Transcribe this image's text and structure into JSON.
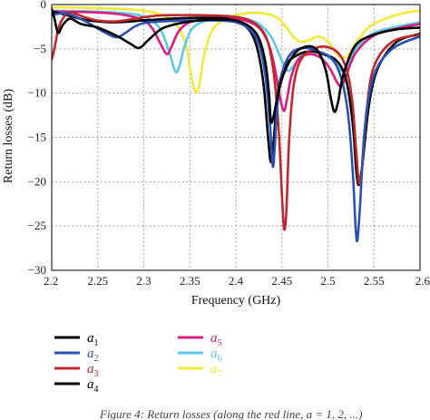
{
  "chart_data": {
    "type": "line",
    "xlabel": "Frequency (GHz)",
    "ylabel": "Return losses (dB)",
    "xlim": [
      2.2,
      2.6
    ],
    "ylim": [
      -30,
      0
    ],
    "xticks": [
      2.2,
      2.25,
      2.3,
      2.35,
      2.4,
      2.45,
      2.5,
      2.55,
      2.6
    ],
    "xtick_labels": [
      "2.2",
      "2.25",
      "2.3",
      "2.35",
      "2.4",
      "2.45",
      "2.5",
      "2.55",
      "2.6"
    ],
    "yticks": [
      0,
      -5,
      -10,
      -15,
      -20,
      -25,
      -30
    ],
    "ytick_labels": [
      "0",
      "−5",
      "−10",
      "−15",
      "−20",
      "−25",
      "−30"
    ],
    "grid": true,
    "grid_style": "dotted",
    "legend_placement": "below",
    "series": [
      {
        "name": "a1",
        "label_base": "a",
        "label_sub": "1",
        "color": "#000000",
        "x": [
          2.2,
          2.203,
          2.207,
          2.212,
          2.22,
          2.232,
          2.25,
          2.27,
          2.285,
          2.295,
          2.305,
          2.32,
          2.34,
          2.36,
          2.38,
          2.4,
          2.415,
          2.425,
          2.432,
          2.436,
          2.438,
          2.441,
          2.445,
          2.452,
          2.465,
          2.48,
          2.49,
          2.498,
          2.503,
          2.507,
          2.511,
          2.517,
          2.53,
          2.55,
          2.575,
          2.6
        ],
        "y": [
          -0.5,
          -1.6,
          -3.2,
          -2.3,
          -1.6,
          -2.2,
          -2.6,
          -3.5,
          -4.4,
          -4.9,
          -4.0,
          -2.7,
          -2.1,
          -1.8,
          -1.7,
          -1.8,
          -2.5,
          -3.8,
          -6.5,
          -10.0,
          -13.2,
          -12.6,
          -10.5,
          -7.8,
          -5.4,
          -4.7,
          -5.4,
          -7.6,
          -10.5,
          -12.1,
          -11.0,
          -7.8,
          -4.6,
          -3.4,
          -2.8,
          -2.6
        ]
      },
      {
        "name": "a2",
        "label_base": "a",
        "label_sub": "2",
        "color": "#2a50b4",
        "x": [
          2.2,
          2.215,
          2.235,
          2.255,
          2.27,
          2.28,
          2.29,
          2.3,
          2.32,
          2.35,
          2.38,
          2.4,
          2.415,
          2.425,
          2.432,
          2.437,
          2.44,
          2.442,
          2.445,
          2.45,
          2.46,
          2.475,
          2.49,
          2.505,
          2.515,
          2.522,
          2.527,
          2.53,
          2.532,
          2.535,
          2.54,
          2.55,
          2.57,
          2.6
        ],
        "y": [
          -1.2,
          -1.0,
          -1.8,
          -3.0,
          -3.7,
          -3.2,
          -2.5,
          -2.1,
          -1.9,
          -1.8,
          -1.8,
          -2.0,
          -2.8,
          -4.5,
          -8.0,
          -13.5,
          -18.2,
          -16.5,
          -11.5,
          -7.8,
          -5.5,
          -4.9,
          -5.3,
          -6.2,
          -8.5,
          -12.5,
          -19.0,
          -25.0,
          -26.6,
          -22.5,
          -14.0,
          -8.0,
          -5.0,
          -3.6
        ]
      },
      {
        "name": "a3",
        "label_base": "a",
        "label_sub": "3",
        "color": "#c0282d",
        "x": [
          2.2,
          2.203,
          2.207,
          2.212,
          2.22,
          2.235,
          2.25,
          2.27,
          2.29,
          2.31,
          2.33,
          2.36,
          2.39,
          2.41,
          2.425,
          2.435,
          2.442,
          2.447,
          2.451,
          2.453,
          2.455,
          2.458,
          2.463,
          2.472,
          2.49,
          2.505,
          2.515,
          2.522,
          2.527,
          2.531,
          2.534,
          2.537,
          2.542,
          2.55,
          2.57,
          2.6
        ],
        "y": [
          -6.2,
          -5.0,
          -2.8,
          -1.6,
          -0.9,
          -1.4,
          -1.8,
          -1.9,
          -1.6,
          -1.3,
          -1.2,
          -1.2,
          -1.3,
          -1.6,
          -2.5,
          -4.3,
          -8.5,
          -15.0,
          -23.5,
          -25.4,
          -23.0,
          -15.0,
          -9.0,
          -6.0,
          -4.8,
          -5.0,
          -6.0,
          -8.0,
          -11.5,
          -17.0,
          -20.2,
          -18.5,
          -12.0,
          -7.0,
          -4.2,
          -3.4
        ]
      },
      {
        "name": "a4",
        "label_base": "a",
        "label_sub": "4",
        "color": "#000000",
        "x": [
          2.2,
          2.21,
          2.22,
          2.235,
          2.25,
          2.27,
          2.3,
          2.33,
          2.36,
          2.39,
          2.41,
          2.422,
          2.43,
          2.435,
          2.438,
          2.441,
          2.445,
          2.452,
          2.465,
          2.48,
          2.495,
          2.51,
          2.52,
          2.527,
          2.531,
          2.534,
          2.538,
          2.545,
          2.555,
          2.575,
          2.6
        ],
        "y": [
          -0.8,
          -1.0,
          -1.3,
          -1.7,
          -1.9,
          -2.0,
          -1.8,
          -1.6,
          -1.5,
          -1.6,
          -2.4,
          -4.5,
          -9.0,
          -15.0,
          -17.8,
          -15.5,
          -10.5,
          -7.2,
          -5.8,
          -5.3,
          -5.6,
          -6.4,
          -8.6,
          -13.5,
          -19.0,
          -20.3,
          -17.5,
          -11.0,
          -7.0,
          -4.2,
          -3.3
        ]
      },
      {
        "name": "a5",
        "label_base": "a",
        "label_sub": "5",
        "color": "#d81d7c",
        "x": [
          2.2,
          2.25,
          2.28,
          2.3,
          2.31,
          2.318,
          2.325,
          2.33,
          2.338,
          2.35,
          2.37,
          2.39,
          2.41,
          2.425,
          2.435,
          2.442,
          2.448,
          2.452,
          2.455,
          2.46,
          2.468,
          2.48,
          2.492,
          2.502,
          2.51,
          2.515,
          2.52,
          2.53,
          2.55,
          2.58,
          2.6
        ],
        "y": [
          -0.8,
          -0.9,
          -1.2,
          -1.8,
          -2.8,
          -4.4,
          -5.6,
          -4.8,
          -3.0,
          -2.0,
          -1.6,
          -1.5,
          -1.8,
          -2.6,
          -4.3,
          -7.0,
          -10.5,
          -12.0,
          -11.0,
          -8.2,
          -6.2,
          -5.6,
          -6.0,
          -7.2,
          -8.8,
          -9.2,
          -8.0,
          -5.5,
          -3.5,
          -2.6,
          -2.2
        ]
      },
      {
        "name": "a6",
        "label_base": "a",
        "label_sub": "6",
        "color": "#5ec7e7",
        "x": [
          2.2,
          2.25,
          2.29,
          2.31,
          2.32,
          2.328,
          2.334,
          2.338,
          2.344,
          2.352,
          2.365,
          2.385,
          2.41,
          2.425,
          2.438,
          2.447,
          2.455,
          2.462,
          2.472,
          2.485,
          2.495,
          2.505,
          2.513,
          2.518,
          2.522,
          2.53,
          2.55,
          2.58,
          2.6
        ],
        "y": [
          -0.7,
          -0.8,
          -1.1,
          -1.9,
          -3.2,
          -5.5,
          -7.5,
          -7.2,
          -4.8,
          -2.8,
          -1.9,
          -1.5,
          -1.6,
          -2.2,
          -3.6,
          -5.6,
          -7.4,
          -7.0,
          -5.6,
          -5.2,
          -5.6,
          -6.3,
          -7.3,
          -7.6,
          -7.0,
          -5.0,
          -3.2,
          -2.4,
          -2.0
        ]
      },
      {
        "name": "a7",
        "label_base": "a",
        "label_sub": "7",
        "color": "#f2e93a",
        "x": [
          2.2,
          2.25,
          2.3,
          2.33,
          2.345,
          2.351,
          2.356,
          2.36,
          2.366,
          2.375,
          2.39,
          2.41,
          2.43,
          2.445,
          2.455,
          2.462,
          2.47,
          2.48,
          2.49,
          2.5,
          2.51,
          2.517,
          2.522,
          2.53,
          2.545,
          2.565,
          2.585,
          2.6
        ],
        "y": [
          -0.3,
          -0.4,
          -0.7,
          -1.7,
          -4.2,
          -7.8,
          -9.8,
          -9.2,
          -5.5,
          -2.8,
          -1.6,
          -1.0,
          -1.0,
          -1.5,
          -2.6,
          -3.6,
          -4.2,
          -4.0,
          -3.6,
          -4.2,
          -5.6,
          -6.0,
          -5.7,
          -4.4,
          -2.5,
          -1.5,
          -0.9,
          -0.7
        ]
      }
    ]
  },
  "caption": "Figure 4: Return losses (along the red line, a = 1, 2, ...)"
}
